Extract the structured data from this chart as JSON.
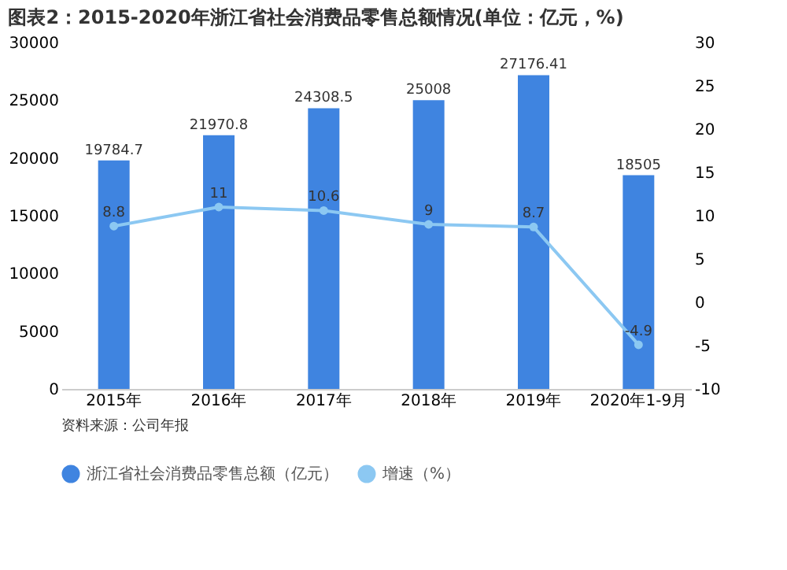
{
  "chart_data": {
    "type": "bar",
    "title": "图表2：2015-2020年浙江省社会消费品零售总额情况(单位：亿元，%)",
    "categories": [
      "2015年",
      "2016年",
      "2017年",
      "2018年",
      "2019年",
      "2020年1-9月"
    ],
    "series": [
      {
        "name": "浙江省社会消费品零售总额（亿元）",
        "color": "#3f84e0",
        "values": [
          19784.7,
          21970.8,
          24308.5,
          25008,
          27176.41,
          18505
        ]
      },
      {
        "name": "增速（%）",
        "type": "line",
        "axis": "y2",
        "color": "#8cc8f2",
        "values": [
          8.8,
          11,
          10.6,
          9,
          8.7,
          -4.9
        ]
      }
    ],
    "ylim": [
      0,
      30000
    ],
    "yticks": [
      0,
      5000,
      10000,
      15000,
      20000,
      25000,
      30000
    ],
    "y2lim": [
      -10,
      30
    ],
    "y2ticks": [
      -10,
      -5,
      0,
      5,
      10,
      15,
      20,
      25,
      30
    ],
    "data_labels": true,
    "marker": "circle",
    "grid": false,
    "legend": "bottom",
    "annotations": [
      "资料来源：公司年报"
    ]
  }
}
